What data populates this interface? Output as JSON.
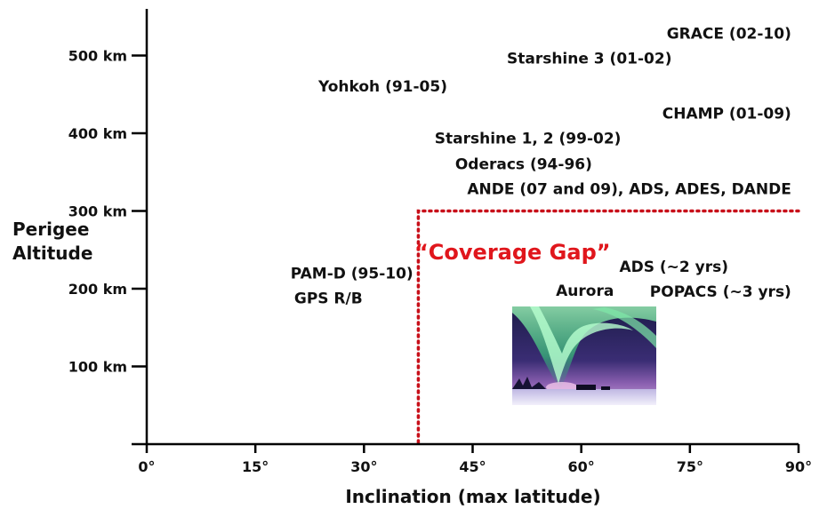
{
  "chart_data": {
    "type": "scatter",
    "xlabel": "Inclination (max latitude)",
    "ylabel_lines": [
      "Perigee",
      "Altitude"
    ],
    "xlim": [
      0,
      90
    ],
    "ylim": [
      0,
      560
    ],
    "x_ticks": [
      {
        "value": 0,
        "label": "0°"
      },
      {
        "value": 15,
        "label": "15°"
      },
      {
        "value": 30,
        "label": "30°"
      },
      {
        "value": 45,
        "label": "45°"
      },
      {
        "value": 60,
        "label": "60°"
      },
      {
        "value": 75,
        "label": "75°"
      },
      {
        "value": 90,
        "label": "90°"
      }
    ],
    "y_ticks": [
      {
        "value": 0,
        "label": ""
      },
      {
        "value": 100,
        "label": "100 km"
      },
      {
        "value": 200,
        "label": "200 km"
      },
      {
        "value": 300,
        "label": "300 km"
      },
      {
        "value": 400,
        "label": "400 km"
      },
      {
        "value": 500,
        "label": "500 km"
      }
    ],
    "grid": false,
    "labels": [
      {
        "text": "GRACE (02-10)",
        "x": 89,
        "y": 522,
        "anchor": "end"
      },
      {
        "text": "Starshine 3 (01-02)",
        "x": 72.5,
        "y": 490,
        "anchor": "end"
      },
      {
        "text": "Yohkoh (91-05)",
        "x": 41.5,
        "y": 454,
        "anchor": "end"
      },
      {
        "text": "CHAMP (01-09)",
        "x": 89,
        "y": 419,
        "anchor": "end"
      },
      {
        "text": "Starshine 1, 2 (99-02)",
        "x": 65.5,
        "y": 387,
        "anchor": "end"
      },
      {
        "text": "Oderacs (94-96)",
        "x": 61.5,
        "y": 354,
        "anchor": "end"
      },
      {
        "text": "ANDE (07 and 09), ADS, ADES, DANDE",
        "x": 89,
        "y": 322,
        "anchor": "end"
      },
      {
        "text": "PAM-D (95-10)",
        "x": 36.8,
        "y": 213,
        "anchor": "end"
      },
      {
        "text": "GPS R/B",
        "x": 29.8,
        "y": 181,
        "anchor": "end"
      },
      {
        "text": "ADS (~2 yrs)",
        "x": 80.3,
        "y": 222,
        "anchor": "end"
      },
      {
        "text": "POPACS (~3 yrs)",
        "x": 89,
        "y": 190,
        "anchor": "end"
      },
      {
        "text": "Aurora",
        "x": 60.5,
        "y": 191,
        "anchor": "middle"
      }
    ],
    "annotation": {
      "text": "“Coverage Gap”",
      "x": 50.5,
      "y": 238,
      "color": "#e0161c"
    },
    "coverage_gap_boundary": {
      "inclination_deg": 37.5,
      "altitude_km": 300,
      "style": "dotted",
      "color": "#c8101a"
    }
  },
  "image": {
    "name": "aurora photo",
    "sky_color": "#2a2460",
    "aurora_color": "#4fe08a",
    "ground_color": "#d8d6ee"
  }
}
